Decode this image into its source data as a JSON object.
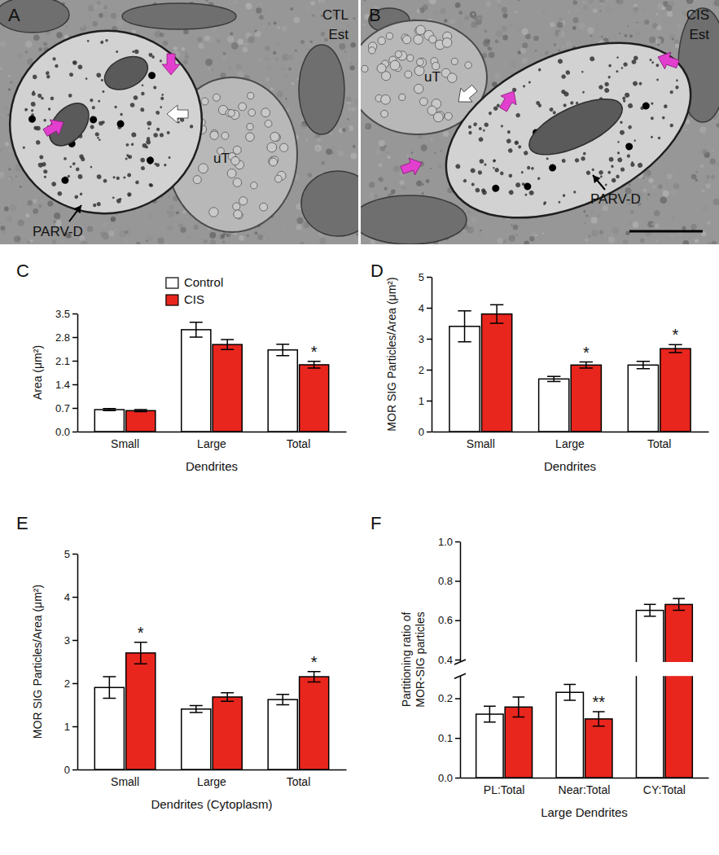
{
  "images": [
    {
      "label": "A",
      "condition": "CTL",
      "treatment": "Est",
      "terminal": "uT",
      "dendrite": "PARV-D"
    },
    {
      "label": "B",
      "condition": "CIS",
      "treatment": "Est",
      "terminal": "uT",
      "dendrite": "PARV-D"
    }
  ],
  "chart_data": [
    {
      "type": "bar",
      "title": "C",
      "ylabel": "Area (μm²)",
      "xlabel": "Dendrites",
      "categories": [
        "Small",
        "Large",
        "Total"
      ],
      "series": [
        {
          "name": "Control",
          "color": "#ffffff",
          "values": [
            0.65,
            3.02,
            2.42
          ],
          "errors": [
            0.03,
            0.22,
            0.17
          ]
        },
        {
          "name": "CIS",
          "color": "#e8261d",
          "values": [
            0.62,
            2.58,
            1.98
          ],
          "errors": [
            0.03,
            0.15,
            0.1
          ],
          "annotations": [
            null,
            null,
            "*"
          ]
        }
      ],
      "ylim": [
        0,
        3.5
      ],
      "yticks": [
        {
          "value": 0,
          "label": "0.0"
        },
        0.7,
        1.4,
        2.1,
        2.8,
        3.5
      ],
      "legend": "top"
    },
    {
      "type": "bar",
      "title": "D",
      "ylabel": "MOR SIG Particles/Area (μm²)",
      "xlabel": "Dendrites",
      "categories": [
        "Small",
        "Large",
        "Total"
      ],
      "series": [
        {
          "color": "#ffffff",
          "values": [
            3.4,
            1.7,
            2.15
          ],
          "errors": [
            0.5,
            0.08,
            0.12
          ]
        },
        {
          "color": "#e8261d",
          "values": [
            3.8,
            2.15,
            2.68
          ],
          "errors": [
            0.3,
            0.1,
            0.13
          ],
          "annotations": [
            null,
            "*",
            "*"
          ]
        }
      ],
      "ylim": [
        0,
        5
      ],
      "yticks": [
        0,
        1,
        2,
        3,
        4,
        5
      ]
    },
    {
      "type": "bar",
      "title": "E",
      "ylabel": "MOR SIG Particles/Area (μm²)",
      "xlabel": "Dendrites (Cytoplasm)",
      "categories": [
        "Small",
        "Large",
        "Total"
      ],
      "series": [
        {
          "color": "#ffffff",
          "values": [
            1.9,
            1.4,
            1.62
          ],
          "errors": [
            0.25,
            0.08,
            0.12
          ]
        },
        {
          "color": "#e8261d",
          "values": [
            2.7,
            1.68,
            2.15
          ],
          "errors": [
            0.25,
            0.1,
            0.12
          ],
          "annotations": [
            "*",
            null,
            "*"
          ]
        }
      ],
      "ylim": [
        0,
        5
      ],
      "yticks": [
        0,
        1,
        2,
        3,
        4,
        5
      ]
    },
    {
      "type": "bar",
      "title": "F",
      "ylabel": "Partitioning ratio of\nMOR-SIG particles",
      "xlabel": "Large Dendrites",
      "categories": [
        "PL:Total",
        "Near:Total",
        "CY:Total"
      ],
      "series": [
        {
          "color": "#ffffff",
          "values": [
            0.16,
            0.215,
            0.65
          ],
          "errors": [
            0.02,
            0.02,
            0.03
          ]
        },
        {
          "color": "#e8261d",
          "values": [
            0.178,
            0.148,
            0.68
          ],
          "errors": [
            0.025,
            0.018,
            0.03
          ],
          "annotations": [
            null,
            "**",
            null
          ]
        }
      ],
      "ylim": [
        0,
        1
      ],
      "ybreak": [
        0.25,
        0.4
      ],
      "yticks": [
        {
          "value": 0,
          "label": "0.0"
        },
        0.1,
        0.2,
        0.4,
        0.6,
        0.8,
        {
          "value": 1,
          "label": "1.0"
        }
      ]
    }
  ]
}
